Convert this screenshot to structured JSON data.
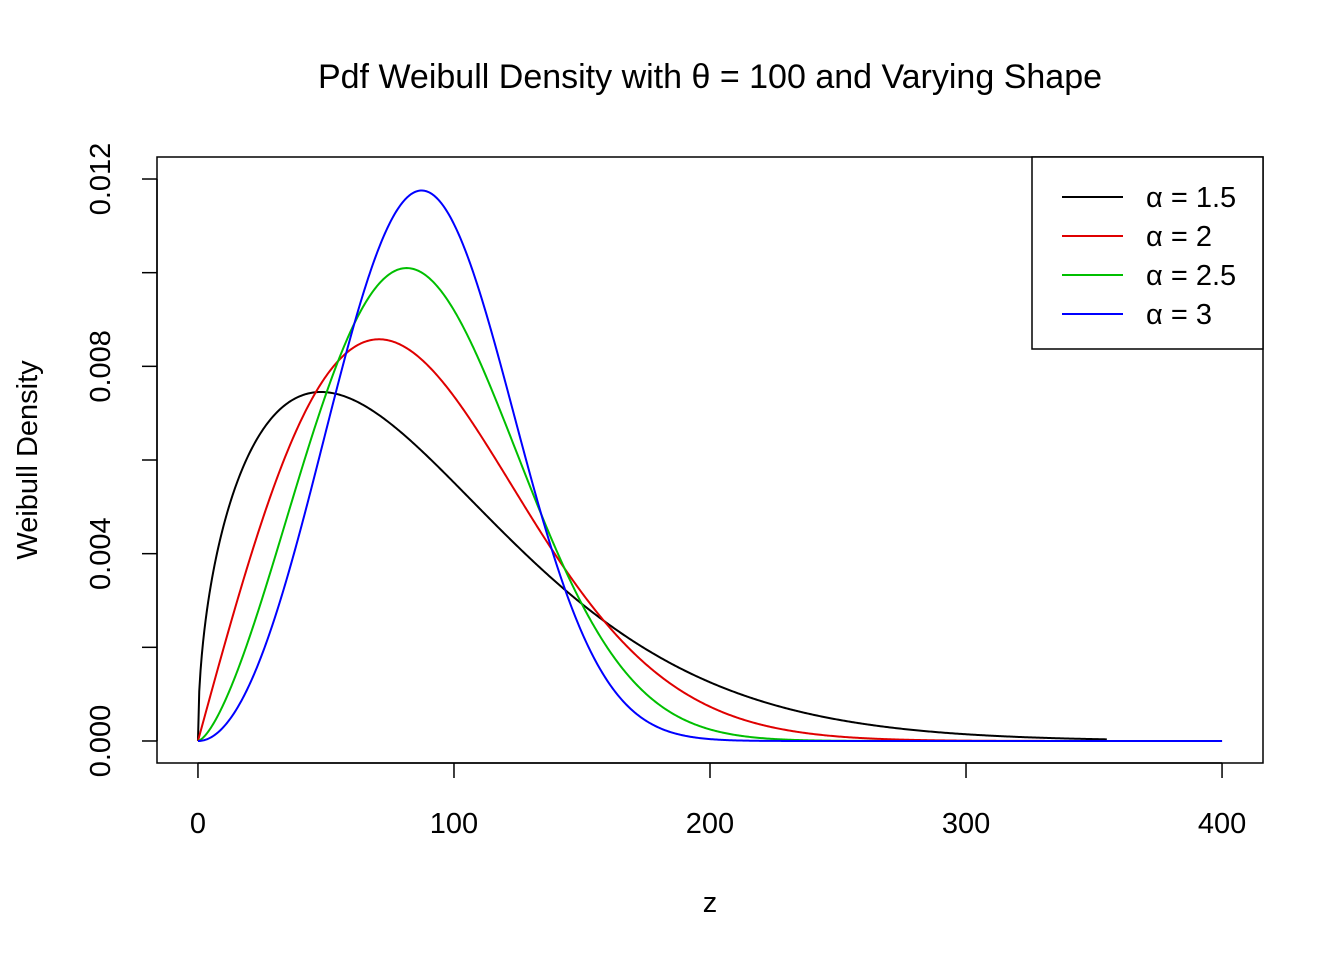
{
  "chart_data": {
    "type": "line",
    "title": "Pdf Weibull Density with θ = 100 and Varying Shape",
    "xlabel": "z",
    "ylabel": "Weibull Density",
    "xlim": [
      -16,
      416
    ],
    "ylim": [
      -0.00047,
      0.01247
    ],
    "x_ticks": [
      0,
      100,
      200,
      300,
      400
    ],
    "x_tick_labels": [
      "0",
      "100",
      "200",
      "300",
      "400"
    ],
    "y_ticks": [
      0,
      0.002,
      0.004,
      0.006,
      0.008,
      0.01,
      0.012
    ],
    "y_tick_labels": [
      "0.000",
      "",
      "0.004",
      "",
      "0.008",
      "",
      "0.012"
    ],
    "x_range": [
      0,
      400
    ],
    "theta": 100,
    "grid": false,
    "legend_position": "top-right",
    "series": [
      {
        "name": "α = 1.5",
        "shape": 1.5,
        "color": "#000000",
        "x_end": 355
      },
      {
        "name": "α = 2",
        "shape": 2,
        "color": "#DF0000",
        "x_end": 400
      },
      {
        "name": "α = 2.5",
        "shape": 2.5,
        "color": "#00BF00",
        "x_end": 400
      },
      {
        "name": "α = 3",
        "shape": 3,
        "color": "#0000FF",
        "x_end": 400
      }
    ]
  }
}
